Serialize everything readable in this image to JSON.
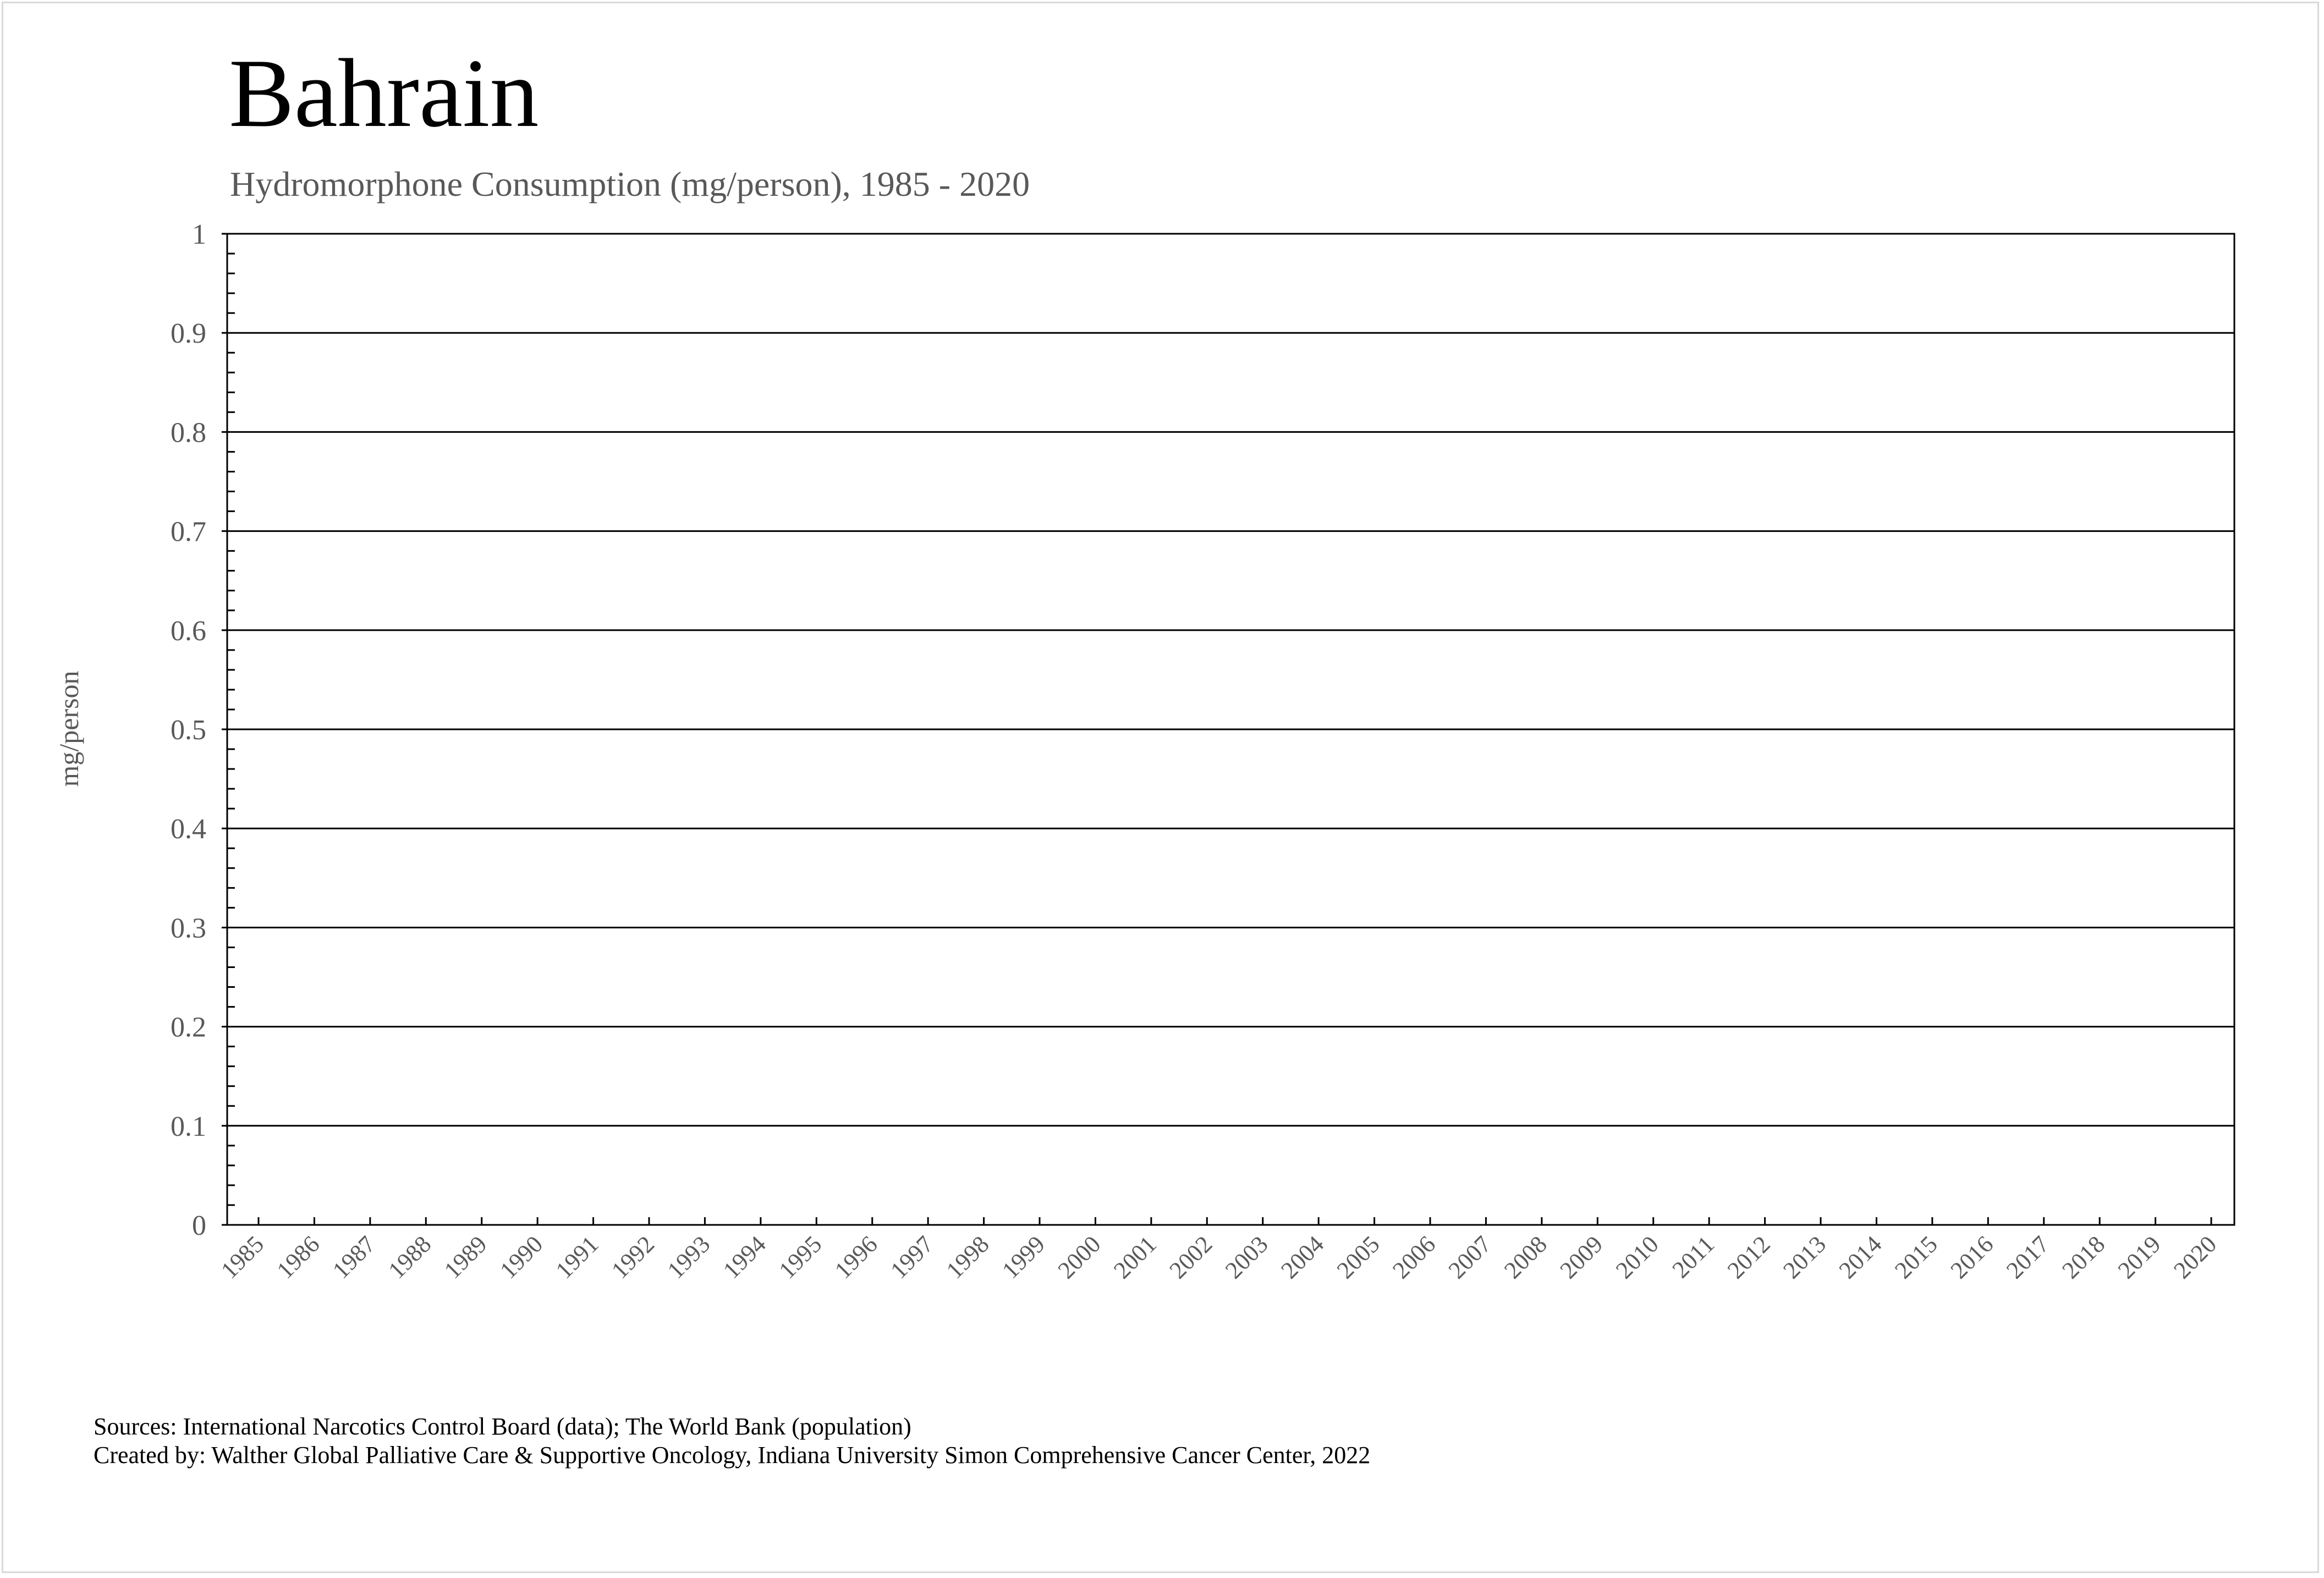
{
  "chart_data": {
    "type": "line",
    "title": "Bahrain",
    "subtitle": "Hydromorphone Consumption (mg/person), 1985 - 2020",
    "xlabel": "",
    "ylabel": "mg/person",
    "x": [
      "1985",
      "1986",
      "1987",
      "1988",
      "1989",
      "1990",
      "1991",
      "1992",
      "1993",
      "1994",
      "1995",
      "1996",
      "1997",
      "1998",
      "1999",
      "2000",
      "2001",
      "2002",
      "2003",
      "2004",
      "2005",
      "2006",
      "2007",
      "2008",
      "2009",
      "2010",
      "2011",
      "2012",
      "2013",
      "2014",
      "2015",
      "2016",
      "2017",
      "2018",
      "2019",
      "2020"
    ],
    "series": [],
    "ylim": [
      0,
      1
    ],
    "yticks": [
      "0",
      "0.1",
      "0.2",
      "0.3",
      "0.4",
      "0.5",
      "0.6",
      "0.7",
      "0.8",
      "0.9",
      "1"
    ],
    "grid": true,
    "legend": "none"
  },
  "footer": {
    "sources": "Sources: International Narcotics Control Board (data); The World Bank (population)",
    "created_by": "Created by: Walther Global Palliative Care & Supportive Oncology, Indiana University Simon Comprehensive Cancer Center, 2022"
  }
}
